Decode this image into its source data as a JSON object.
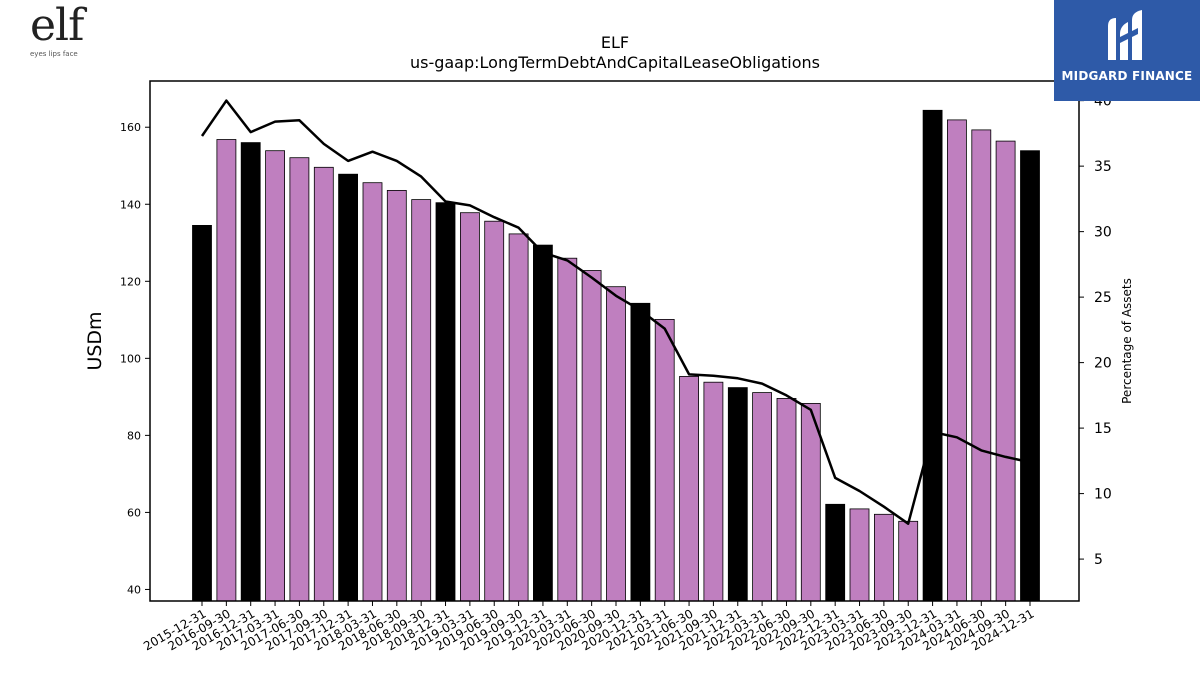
{
  "branding": {
    "company_logo_text": "elf",
    "company_logo_tagline": "eyes lips face",
    "watermark_text": "MIDGARD FINANCE"
  },
  "colors": {
    "bar_annual": "#000000",
    "bar_quarterly": "#bf7fbf",
    "line": "#000000",
    "watermark_bg": "#2e5aa8"
  },
  "chart_data": {
    "type": "bar",
    "title": "ELF",
    "subtitle": "us-gaap:LongTermDebtAndCapitalLeaseObligations",
    "ylabel": "USDm",
    "y2label": "Percentage of Assets",
    "ylim": [
      37,
      172
    ],
    "y2lim": [
      1.8,
      41.5
    ],
    "yticks": [
      40,
      60,
      80,
      100,
      120,
      140,
      160
    ],
    "y2ticks": [
      5,
      10,
      15,
      20,
      25,
      30,
      35,
      40
    ],
    "grid": false,
    "legend": "none",
    "categories": [
      "2015-12-31",
      "2016-09-30",
      "2016-12-31",
      "2017-03-31",
      "2017-06-30",
      "2017-09-30",
      "2017-12-31",
      "2018-03-31",
      "2018-06-30",
      "2018-09-30",
      "2018-12-31",
      "2019-03-31",
      "2019-06-30",
      "2019-09-30",
      "2019-12-31",
      "2020-03-31",
      "2020-06-30",
      "2020-09-30",
      "2020-12-31",
      "2021-03-31",
      "2021-06-30",
      "2021-09-30",
      "2021-12-31",
      "2022-03-31",
      "2022-06-30",
      "2022-09-30",
      "2022-12-31",
      "2023-03-31",
      "2023-06-30",
      "2023-09-30",
      "2023-12-31",
      "2024-03-31",
      "2024-06-30",
      "2024-09-30",
      "2024-12-31"
    ],
    "series": [
      {
        "kind": "bar",
        "values": [
          134.5,
          156.8,
          156.0,
          153.9,
          152.1,
          149.6,
          147.8,
          145.6,
          143.6,
          141.2,
          140.4,
          137.8,
          135.6,
          132.3,
          129.4,
          126.0,
          122.8,
          118.6,
          114.3,
          110.1,
          95.3,
          93.8,
          92.4,
          91.1,
          89.6,
          88.3,
          62.1,
          60.9,
          59.5,
          57.7,
          164.4,
          161.9,
          159.3,
          156.4,
          153.9
        ],
        "annual": [
          true,
          false,
          true,
          false,
          false,
          false,
          true,
          false,
          false,
          false,
          true,
          false,
          false,
          false,
          true,
          false,
          false,
          false,
          true,
          false,
          false,
          false,
          true,
          false,
          false,
          false,
          true,
          false,
          false,
          false,
          true,
          false,
          false,
          false,
          true
        ]
      },
      {
        "kind": "line",
        "axis": "right",
        "values": [
          37.3,
          40.0,
          37.6,
          38.4,
          38.5,
          36.7,
          35.4,
          36.1,
          35.4,
          34.2,
          32.3,
          32.0,
          31.1,
          30.3,
          28.4,
          27.8,
          26.5,
          25.1,
          24.0,
          22.6,
          19.1,
          19.0,
          18.8,
          18.4,
          17.5,
          16.4,
          11.2,
          10.2,
          9.0,
          7.7,
          14.7,
          14.3,
          13.3,
          12.8,
          12.4
        ]
      }
    ]
  }
}
